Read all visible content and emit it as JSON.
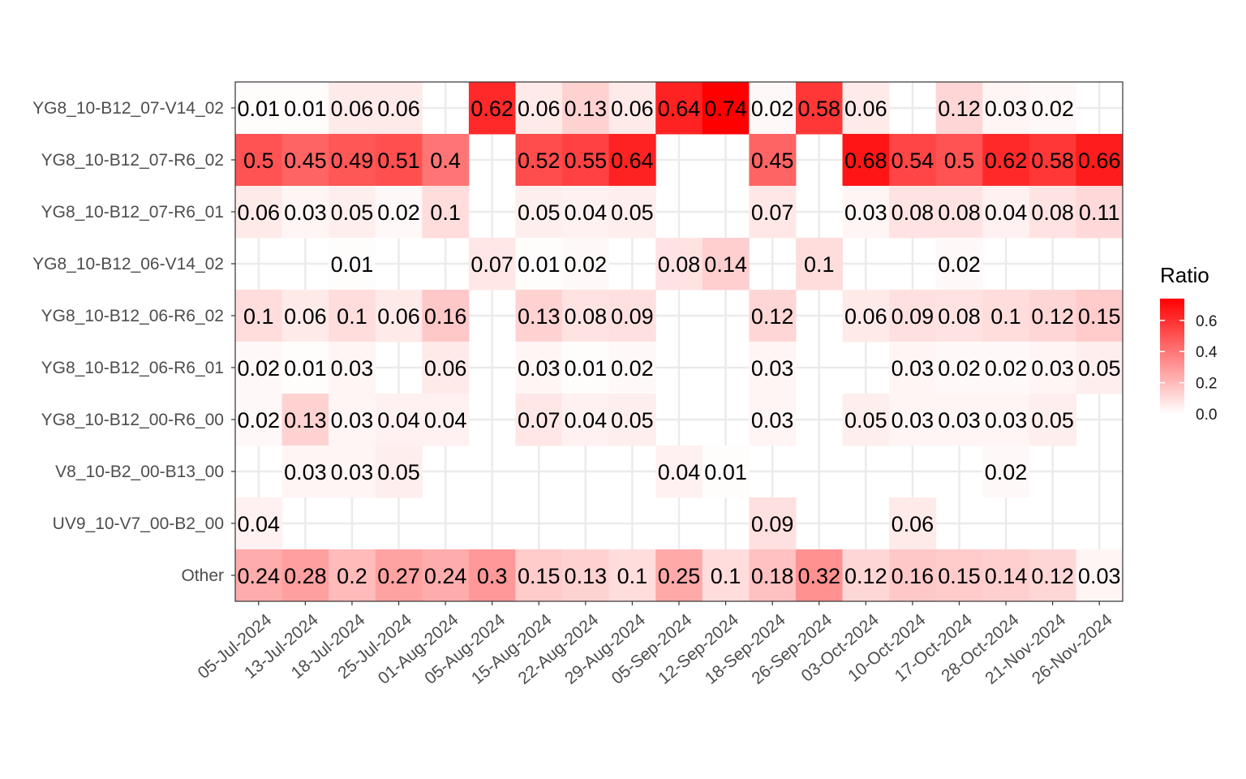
{
  "chart_data": {
    "type": "heatmap",
    "title": "",
    "xlabel": "",
    "ylabel": "",
    "x": [
      "05-Jul-2024",
      "13-Jul-2024",
      "18-Jul-2024",
      "25-Jul-2024",
      "01-Aug-2024",
      "05-Aug-2024",
      "15-Aug-2024",
      "22-Aug-2024",
      "29-Aug-2024",
      "05-Sep-2024",
      "12-Sep-2024",
      "18-Sep-2024",
      "26-Sep-2024",
      "03-Oct-2024",
      "10-Oct-2024",
      "17-Oct-2024",
      "28-Oct-2024",
      "21-Nov-2024",
      "26-Nov-2024"
    ],
    "y": [
      "YG8_10-B12_07-V14_02",
      "YG8_10-B12_07-R6_02",
      "YG8_10-B12_07-R6_01",
      "YG8_10-B12_06-V14_02",
      "YG8_10-B12_06-R6_02",
      "YG8_10-B12_06-R6_01",
      "YG8_10-B12_00-R6_00",
      "V8_10-B2_00-B13_00",
      "UV9_10-V7_00-B2_00",
      "Other"
    ],
    "values": [
      [
        0.01,
        0.01,
        0.06,
        0.06,
        null,
        0.62,
        0.06,
        0.13,
        0.06,
        0.64,
        0.74,
        0.02,
        0.58,
        0.06,
        null,
        0.12,
        0.03,
        0.02,
        null
      ],
      [
        0.5,
        0.45,
        0.49,
        0.51,
        0.4,
        null,
        0.52,
        0.55,
        0.64,
        null,
        null,
        0.45,
        null,
        0.68,
        0.54,
        0.5,
        0.62,
        0.58,
        0.66
      ],
      [
        0.06,
        0.03,
        0.05,
        0.02,
        0.1,
        null,
        0.05,
        0.04,
        0.05,
        null,
        null,
        0.07,
        null,
        0.03,
        0.08,
        0.08,
        0.04,
        0.08,
        0.11
      ],
      [
        null,
        null,
        0.01,
        null,
        null,
        0.07,
        0.01,
        0.02,
        null,
        0.08,
        0.14,
        null,
        0.1,
        null,
        null,
        0.02,
        null,
        null,
        null
      ],
      [
        0.1,
        0.06,
        0.1,
        0.06,
        0.16,
        null,
        0.13,
        0.08,
        0.09,
        null,
        null,
        0.12,
        null,
        0.06,
        0.09,
        0.08,
        0.1,
        0.12,
        0.15
      ],
      [
        0.02,
        0.01,
        0.03,
        null,
        0.06,
        null,
        0.03,
        0.01,
        0.02,
        null,
        null,
        0.03,
        null,
        null,
        0.03,
        0.02,
        0.02,
        0.03,
        0.05
      ],
      [
        0.02,
        0.13,
        0.03,
        0.04,
        0.04,
        null,
        0.07,
        0.04,
        0.05,
        null,
        null,
        0.03,
        null,
        0.05,
        0.03,
        0.03,
        0.03,
        0.05,
        null
      ],
      [
        null,
        0.03,
        0.03,
        0.05,
        null,
        null,
        null,
        null,
        null,
        0.04,
        0.01,
        null,
        null,
        null,
        null,
        null,
        0.02,
        null,
        null
      ],
      [
        0.04,
        null,
        null,
        null,
        null,
        null,
        null,
        null,
        null,
        null,
        null,
        0.09,
        null,
        null,
        0.06,
        null,
        null,
        null,
        null
      ],
      [
        0.24,
        0.28,
        0.2,
        0.27,
        0.24,
        0.3,
        0.15,
        0.13,
        0.1,
        0.25,
        0.1,
        0.18,
        0.32,
        0.12,
        0.16,
        0.15,
        0.14,
        0.12,
        0.03
      ]
    ],
    "legend": {
      "title": "Ratio",
      "placement": "right",
      "ticks": [
        "0.0",
        "0.2",
        "0.4",
        "0.6"
      ],
      "tick_values": [
        0,
        0.2,
        0.4,
        0.6
      ],
      "range": [
        0,
        0.74
      ]
    },
    "colors": {
      "low": "#ffffff",
      "high": "#ff0000",
      "grid": "#ebebeb",
      "panel_border": "#333333"
    },
    "grid": true
  }
}
